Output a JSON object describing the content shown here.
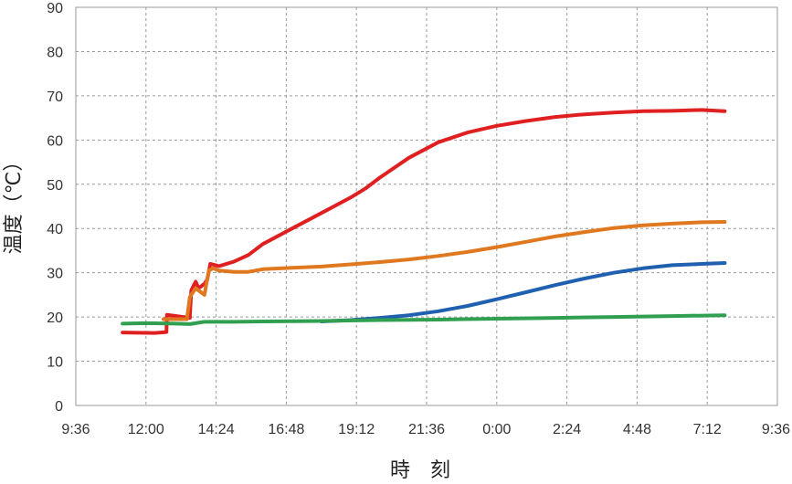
{
  "chart_data": {
    "type": "line",
    "title": "",
    "xlabel": "時　刻",
    "ylabel": "温度（℃）",
    "ylim": [
      0,
      90
    ],
    "yticks": [
      0,
      10,
      20,
      30,
      40,
      50,
      60,
      70,
      80,
      90
    ],
    "xlim_hours": [
      9.6,
      33.6
    ],
    "xtick_labels": [
      "9:36",
      "12:00",
      "14:24",
      "16:48",
      "19:12",
      "21:36",
      "0:00",
      "2:24",
      "4:48",
      "7:12",
      "9:36"
    ],
    "grid": true,
    "series": [
      {
        "name": "red",
        "color": "#e02020",
        "points": [
          [
            11.2,
            16.5
          ],
          [
            12.3,
            16.4
          ],
          [
            12.7,
            16.6
          ],
          [
            12.72,
            20.5
          ],
          [
            13.5,
            19.8
          ],
          [
            13.55,
            26
          ],
          [
            13.7,
            28
          ],
          [
            13.8,
            26.5
          ],
          [
            14.0,
            27.5
          ],
          [
            14.1,
            28.5
          ],
          [
            14.2,
            32
          ],
          [
            14.5,
            31.5
          ],
          [
            15.0,
            32.5
          ],
          [
            15.5,
            34
          ],
          [
            16.0,
            36.5
          ],
          [
            17.0,
            40
          ],
          [
            18.0,
            43.5
          ],
          [
            19.0,
            47
          ],
          [
            19.5,
            49
          ],
          [
            20.0,
            51.5
          ],
          [
            21.0,
            56
          ],
          [
            22.0,
            59.5
          ],
          [
            23.0,
            61.7
          ],
          [
            24.0,
            63.2
          ],
          [
            25.0,
            64.3
          ],
          [
            26.0,
            65.2
          ],
          [
            27.0,
            65.8
          ],
          [
            28.0,
            66.2
          ],
          [
            29.0,
            66.5
          ],
          [
            30.0,
            66.6
          ],
          [
            31.0,
            66.8
          ],
          [
            31.8,
            66.5
          ]
        ]
      },
      {
        "name": "orange",
        "color": "#e07820",
        "points": [
          [
            12.6,
            19.5
          ],
          [
            12.7,
            19.5
          ],
          [
            13.4,
            19.5
          ],
          [
            13.5,
            24.5
          ],
          [
            13.7,
            26.5
          ],
          [
            14.0,
            25
          ],
          [
            14.15,
            30.5
          ],
          [
            14.3,
            31
          ],
          [
            14.5,
            30.5
          ],
          [
            15.0,
            30.2
          ],
          [
            15.5,
            30.2
          ],
          [
            16.0,
            30.8
          ],
          [
            17.0,
            31.1
          ],
          [
            18.0,
            31.4
          ],
          [
            19.0,
            31.9
          ],
          [
            20.0,
            32.4
          ],
          [
            21.0,
            33.0
          ],
          [
            22.0,
            33.8
          ],
          [
            23.0,
            34.7
          ],
          [
            24.0,
            35.8
          ],
          [
            25.0,
            37.0
          ],
          [
            26.0,
            38.2
          ],
          [
            27.0,
            39.2
          ],
          [
            28.0,
            40.1
          ],
          [
            29.0,
            40.7
          ],
          [
            30.0,
            41.1
          ],
          [
            31.0,
            41.4
          ],
          [
            31.8,
            41.5
          ]
        ]
      },
      {
        "name": "blue",
        "color": "#2060b0",
        "points": [
          [
            18.0,
            19.0
          ],
          [
            19.0,
            19.3
          ],
          [
            20.0,
            19.8
          ],
          [
            21.0,
            20.4
          ],
          [
            22.0,
            21.3
          ],
          [
            23.0,
            22.5
          ],
          [
            24.0,
            24.0
          ],
          [
            25.0,
            25.6
          ],
          [
            26.0,
            27.2
          ],
          [
            27.0,
            28.7
          ],
          [
            28.0,
            30.0
          ],
          [
            29.0,
            31.0
          ],
          [
            30.0,
            31.7
          ],
          [
            31.0,
            32.0
          ],
          [
            31.8,
            32.2
          ]
        ]
      },
      {
        "name": "green",
        "color": "#30a050",
        "points": [
          [
            11.2,
            18.5
          ],
          [
            12.0,
            18.6
          ],
          [
            13.0,
            18.5
          ],
          [
            13.5,
            18.4
          ],
          [
            14.0,
            18.9
          ],
          [
            15.0,
            18.9
          ],
          [
            16.0,
            19.0
          ],
          [
            18.0,
            19.1
          ],
          [
            20.0,
            19.3
          ],
          [
            22.0,
            19.4
          ],
          [
            24.0,
            19.6
          ],
          [
            26.0,
            19.8
          ],
          [
            28.0,
            20.0
          ],
          [
            30.0,
            20.2
          ],
          [
            31.8,
            20.4
          ]
        ]
      }
    ]
  }
}
